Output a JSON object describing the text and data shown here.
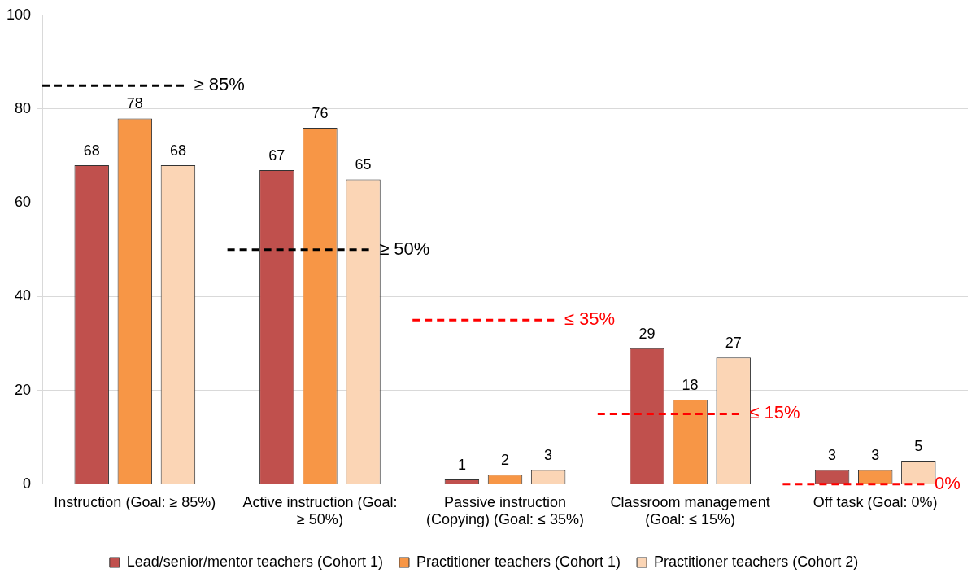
{
  "chart_data": {
    "type": "bar",
    "categories": [
      "Instruction (Goal: ≥ 85%)",
      "Active instruction (Goal: ≥ 50%)",
      "Passive instruction (Copying) (Goal: ≤ 35%)",
      "Classroom management (Goal: ≤ 15%)",
      "Off task (Goal: 0%)"
    ],
    "series": [
      {
        "name": "Lead/senior/mentor teachers (Cohort 1)",
        "color": "#c0504d",
        "values": [
          68,
          67,
          1,
          29,
          3
        ]
      },
      {
        "name": "Practitioner teachers (Cohort 1)",
        "color": "#f79646",
        "values": [
          78,
          76,
          2,
          18,
          3
        ]
      },
      {
        "name": "Practitioner teachers (Cohort 2)",
        "color": "#fbd5b5",
        "values": [
          68,
          65,
          3,
          27,
          5
        ]
      }
    ],
    "ylim": [
      0,
      100
    ],
    "yticks": [
      0,
      20,
      40,
      60,
      80,
      100
    ],
    "grid": "y",
    "legend": "bottom",
    "data_labels": true,
    "ref_lines": [
      {
        "axis": "y",
        "value": 85,
        "label": "≥ 85%",
        "color": "#000000",
        "line_style": "dashed"
      },
      {
        "axis": "y",
        "value": 50,
        "label": "≥ 50%",
        "color": "#000000",
        "line_style": "dashed"
      },
      {
        "axis": "y",
        "value": 35,
        "label": "≤ 35%",
        "color": "#ff0000",
        "line_style": "dashed"
      },
      {
        "axis": "y",
        "value": 15,
        "label": "≤ 15%",
        "color": "#ff0000",
        "line_style": "dashed"
      },
      {
        "axis": "y",
        "value": 0,
        "label": "0%",
        "color": "#ff0000",
        "line_style": "dashed"
      }
    ]
  }
}
